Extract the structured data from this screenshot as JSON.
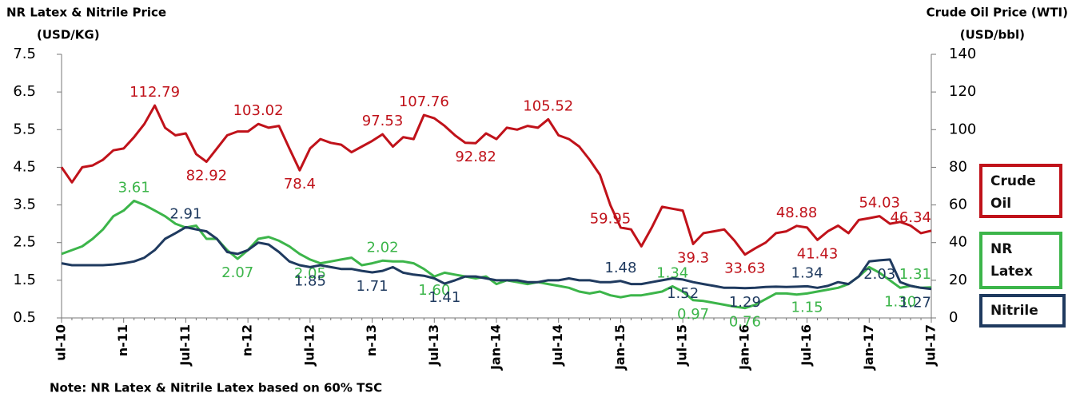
{
  "chart_data": {
    "type": "line",
    "ylabel": "NR Latex & Nitrile Price",
    "ylabel_unit": "(USD/KG)",
    "y2label": "Crude Oil Price (WTI)",
    "y2label_unit": "(USD/bbl)",
    "note": "Note: NR Latex & Nitrile Latex based on 60% TSC",
    "categories": [
      "ul-10",
      null,
      null,
      null,
      null,
      null,
      "n-11",
      null,
      null,
      null,
      null,
      null,
      "Jul-11",
      null,
      null,
      null,
      null,
      null,
      "n-12",
      null,
      null,
      null,
      null,
      null,
      "Jul-12",
      null,
      null,
      null,
      null,
      null,
      "n-13",
      null,
      null,
      null,
      null,
      null,
      "Jul-13",
      null,
      null,
      null,
      null,
      null,
      "Jan-14",
      null,
      null,
      null,
      null,
      null,
      "Jul-14",
      null,
      null,
      null,
      null,
      null,
      "Jan-15",
      null,
      null,
      null,
      null,
      null,
      "Jul-15",
      null,
      null,
      null,
      null,
      null,
      "Jan-16",
      null,
      null,
      null,
      null,
      null,
      "Jul-16",
      null,
      null,
      null,
      null,
      null,
      "Jan-17",
      null,
      null,
      null,
      null,
      null,
      "Jul-17"
    ],
    "ylim": [
      0.5,
      7.5
    ],
    "yticks": [
      0.5,
      1.5,
      2.5,
      3.5,
      4.5,
      5.5,
      6.5,
      7.5
    ],
    "y2lim": [
      0,
      140
    ],
    "y2ticks": [
      0,
      20,
      40,
      60,
      80,
      100,
      120,
      140
    ],
    "legend": "right",
    "series": [
      {
        "name": "Crude Oil",
        "color": "#c0121a",
        "axis": "y2",
        "values": [
          80,
          72,
          80,
          81,
          84,
          89,
          90,
          96,
          103,
          112.79,
          101,
          97,
          98,
          87,
          82.92,
          90,
          97,
          99,
          99,
          103.02,
          101,
          102,
          90,
          78.4,
          90,
          95,
          93,
          92,
          88,
          91,
          94,
          97.53,
          91,
          96,
          95,
          107.76,
          106,
          102,
          97,
          93,
          92.82,
          98,
          95,
          101,
          100,
          102,
          101,
          105.52,
          97,
          95,
          91,
          84,
          76,
          59.95,
          48,
          47,
          38,
          48,
          59,
          58,
          57,
          39.3,
          45,
          46,
          47,
          41,
          33.63,
          37,
          40,
          45,
          46,
          48.88,
          48,
          41.43,
          46,
          49,
          45,
          52,
          53,
          54.03,
          50,
          51,
          49,
          45,
          46.34
        ],
        "value_labels": [
          null,
          null,
          null,
          null,
          null,
          null,
          null,
          null,
          null,
          "112.79",
          null,
          null,
          null,
          null,
          "82.92",
          null,
          null,
          null,
          null,
          "103.02",
          null,
          null,
          null,
          "78.4",
          null,
          null,
          null,
          null,
          null,
          null,
          null,
          "97.53",
          null,
          null,
          null,
          "107.76",
          null,
          null,
          null,
          null,
          "92.82",
          null,
          null,
          null,
          null,
          null,
          null,
          "105.52",
          null,
          null,
          null,
          null,
          null,
          "59.95",
          null,
          null,
          null,
          null,
          null,
          null,
          null,
          "39.3",
          null,
          null,
          null,
          null,
          "33.63",
          null,
          null,
          null,
          null,
          "48.88",
          null,
          "41.43",
          null,
          null,
          null,
          null,
          null,
          "54.03",
          null,
          null,
          null,
          null,
          "46.34"
        ]
      },
      {
        "name": "NR Latex",
        "color": "#3cb54a",
        "values": [
          2.2,
          2.3,
          2.4,
          2.6,
          2.85,
          3.2,
          3.35,
          3.61,
          3.5,
          3.35,
          3.2,
          3.0,
          2.9,
          2.95,
          2.6,
          2.6,
          2.3,
          2.07,
          2.3,
          2.6,
          2.65,
          2.55,
          2.4,
          2.2,
          2.05,
          1.95,
          2.0,
          2.05,
          2.1,
          1.9,
          1.95,
          2.02,
          2.0,
          2.0,
          1.95,
          1.8,
          1.6,
          1.7,
          1.65,
          1.6,
          1.55,
          1.6,
          1.4,
          1.5,
          1.45,
          1.4,
          1.45,
          1.4,
          1.35,
          1.3,
          1.2,
          1.15,
          1.2,
          1.1,
          1.05,
          1.1,
          1.1,
          1.15,
          1.2,
          1.34,
          1.2,
          0.97,
          0.95,
          0.9,
          0.85,
          0.8,
          0.76,
          0.85,
          1.0,
          1.15,
          1.15,
          1.12,
          1.15,
          1.2,
          1.25,
          1.3,
          1.4,
          1.6,
          1.85,
          1.7,
          1.5,
          1.3,
          1.35,
          1.3,
          1.31
        ],
        "value_labels": [
          null,
          null,
          null,
          null,
          null,
          null,
          null,
          "3.61",
          null,
          null,
          null,
          null,
          null,
          null,
          null,
          null,
          null,
          "2.07",
          null,
          null,
          null,
          null,
          null,
          null,
          "2.05",
          null,
          null,
          null,
          null,
          null,
          null,
          "2.02",
          null,
          null,
          null,
          null,
          "1.60",
          null,
          null,
          null,
          null,
          null,
          null,
          null,
          null,
          null,
          null,
          null,
          null,
          null,
          null,
          null,
          null,
          null,
          null,
          null,
          null,
          null,
          null,
          "1.34",
          null,
          "0.97",
          null,
          null,
          null,
          null,
          "0.76",
          null,
          null,
          null,
          null,
          null,
          "1.15",
          null,
          null,
          null,
          null,
          null,
          null,
          null,
          null,
          "1.30",
          null,
          null,
          "1.31"
        ]
      },
      {
        "name": "Nitrile",
        "color": "#1f3a5f",
        "values": [
          1.95,
          1.9,
          1.9,
          1.9,
          1.9,
          1.92,
          1.95,
          2.0,
          2.1,
          2.3,
          2.6,
          2.75,
          2.91,
          2.85,
          2.8,
          2.6,
          2.25,
          2.2,
          2.3,
          2.5,
          2.45,
          2.25,
          2.0,
          1.9,
          1.85,
          1.9,
          1.85,
          1.8,
          1.8,
          1.75,
          1.71,
          1.75,
          1.85,
          1.7,
          1.65,
          1.62,
          1.55,
          1.41,
          1.5,
          1.6,
          1.6,
          1.55,
          1.5,
          1.5,
          1.5,
          1.45,
          1.45,
          1.5,
          1.5,
          1.55,
          1.5,
          1.5,
          1.45,
          1.45,
          1.48,
          1.4,
          1.4,
          1.45,
          1.5,
          1.55,
          1.52,
          1.45,
          1.4,
          1.35,
          1.3,
          1.3,
          1.29,
          1.3,
          1.32,
          1.33,
          1.32,
          1.33,
          1.34,
          1.3,
          1.35,
          1.45,
          1.4,
          1.6,
          2.0,
          2.03,
          2.05,
          1.45,
          1.35,
          1.3,
          1.27
        ],
        "value_labels": [
          null,
          null,
          null,
          null,
          null,
          null,
          null,
          null,
          null,
          null,
          null,
          null,
          "2.91",
          null,
          null,
          null,
          null,
          null,
          null,
          null,
          null,
          null,
          null,
          null,
          "1.85",
          null,
          null,
          null,
          null,
          null,
          "1.71",
          null,
          null,
          null,
          null,
          null,
          null,
          "1.41",
          null,
          null,
          null,
          null,
          null,
          null,
          null,
          null,
          null,
          null,
          null,
          null,
          null,
          null,
          null,
          null,
          "1.48",
          null,
          null,
          null,
          null,
          null,
          "1.52",
          null,
          null,
          null,
          null,
          null,
          "1.29",
          null,
          null,
          null,
          null,
          null,
          "1.34",
          null,
          null,
          null,
          null,
          null,
          null,
          "2.03",
          null,
          null,
          null,
          null,
          "1.27"
        ]
      }
    ]
  }
}
